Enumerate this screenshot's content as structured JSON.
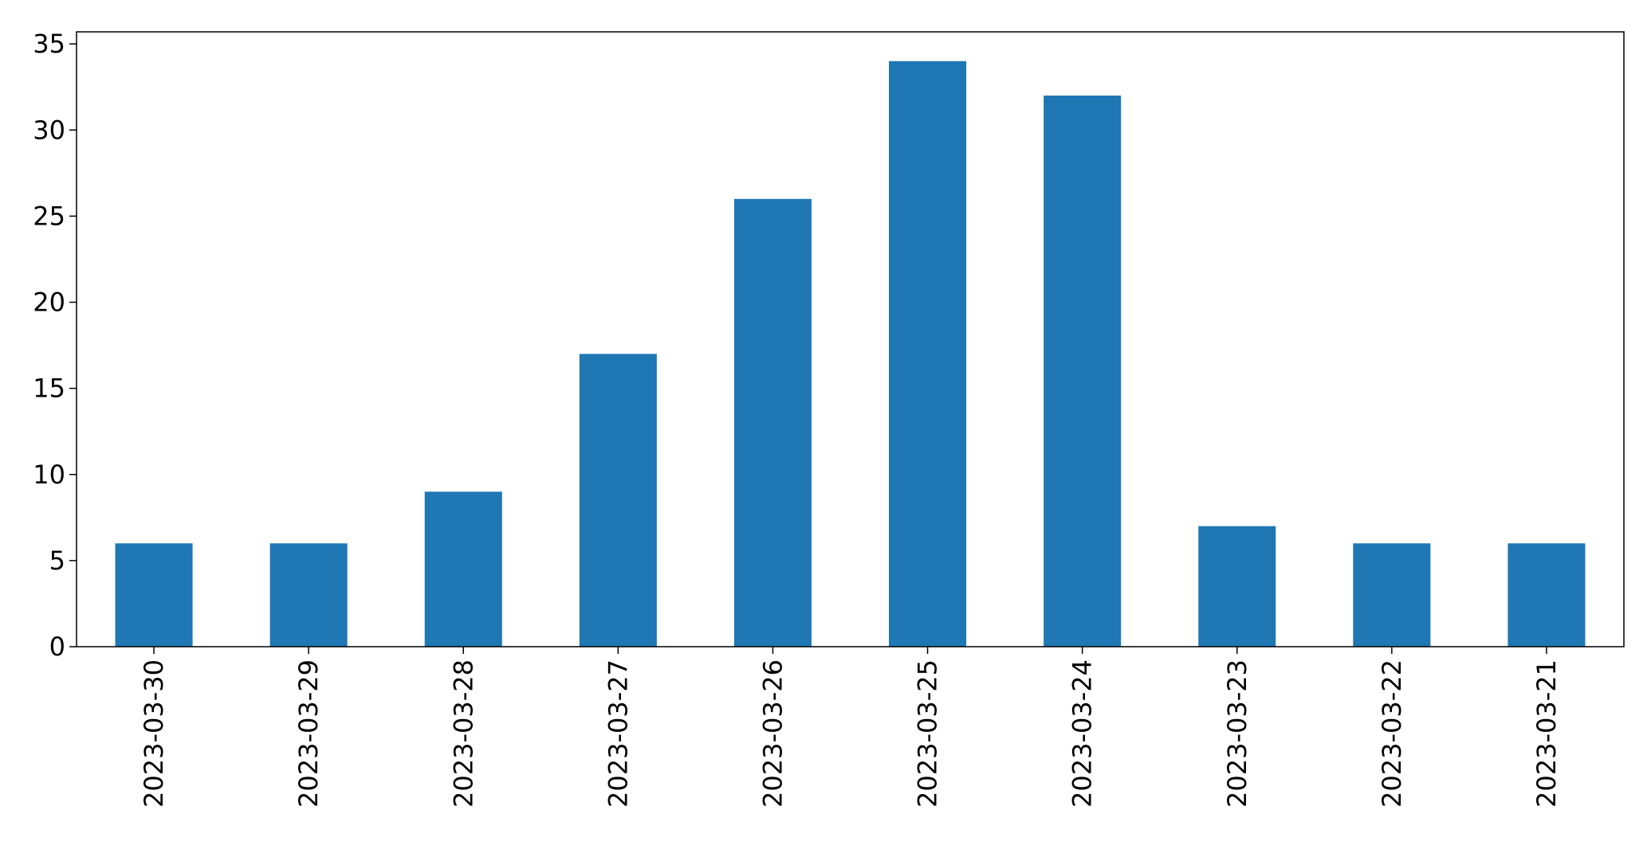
{
  "chart_data": {
    "type": "bar",
    "title": "",
    "xlabel": "",
    "ylabel": "",
    "categories": [
      "2023-03-30",
      "2023-03-29",
      "2023-03-28",
      "2023-03-27",
      "2023-03-26",
      "2023-03-25",
      "2023-03-24",
      "2023-03-23",
      "2023-03-22",
      "2023-03-21"
    ],
    "values": [
      6,
      6,
      9,
      17,
      26,
      34,
      32,
      7,
      6,
      6
    ],
    "ylim": [
      0,
      35.7
    ],
    "yticks": [
      0,
      5,
      10,
      15,
      20,
      25,
      30,
      35
    ],
    "grid": false,
    "legend": "none",
    "bar_color": "#1f77b4"
  }
}
